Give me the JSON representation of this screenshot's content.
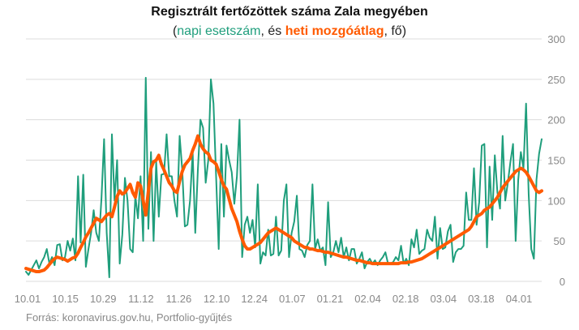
{
  "header": {
    "title": "Regisztrált fertőzöttek száma Zala megyében",
    "subtitle_open": "(",
    "subtitle_daily": "napi esetszám",
    "subtitle_mid": ", és ",
    "subtitle_weekly": "heti mozgóátlag",
    "subtitle_close": ", fő)"
  },
  "source": "Forrás: koronavirus.gov.hu, Portfolio-gyűjtés",
  "colors": {
    "daily": "#1f9e7c",
    "weekly": "#ff5a00",
    "grid": "#dcdcdc",
    "tick": "#888888"
  },
  "chart_data": {
    "type": "line",
    "title": "Regisztrált fertőzöttek száma Zala megyében",
    "subtitle": "(napi esetszám, és heti mozgóátlag, fő)",
    "xlabel": "",
    "ylabel": "",
    "ylim": [
      0,
      300
    ],
    "yticks": [
      0,
      50,
      100,
      150,
      200,
      250,
      300
    ],
    "grid": true,
    "x_start": "2020-10-01",
    "x_end": "2021-04-10",
    "xtick_labels": [
      "10.01",
      "10.15",
      "10.29",
      "11.12",
      "11.26",
      "12.10",
      "12.24",
      "01.07",
      "01.21",
      "02.04",
      "02.18",
      "03.04",
      "03.18",
      "04.01"
    ],
    "series": [
      {
        "name": "napi esetszám",
        "style": "thin",
        "values": [
          12,
          8,
          14,
          20,
          26,
          16,
          24,
          30,
          40,
          22,
          30,
          20,
          45,
          46,
          26,
          30,
          50,
          38,
          53,
          26,
          130,
          48,
          132,
          18,
          40,
          60,
          88,
          60,
          50,
          103,
          176,
          60,
          5,
          182,
          100,
          150,
          22,
          58,
          128,
          100,
          40,
          36,
          106,
          78,
          130,
          50,
          252,
          65,
          160,
          50,
          148,
          80,
          132,
          133,
          182,
          130,
          130,
          100,
          80,
          180,
          138,
          68,
          70,
          100,
          160,
          60,
          138,
          200,
          190,
          122,
          150,
          250,
          220,
          130,
          40,
          170,
          80,
          168,
          150,
          135,
          96,
          130,
          200,
          30,
          70,
          80,
          60,
          76,
          42,
          120,
          22,
          36,
          32,
          64,
          32,
          34,
          80,
          32,
          38,
          100,
          120,
          30,
          60,
          74,
          106,
          40,
          38,
          30,
          45,
          50,
          120,
          40,
          52,
          38,
          42,
          20,
          98,
          30,
          36,
          50,
          36,
          54,
          30,
          42,
          26,
          40,
          40,
          22,
          28,
          36,
          16,
          24,
          28,
          22,
          26,
          20,
          26,
          30,
          36,
          22,
          22,
          24,
          30,
          26,
          44,
          22,
          28,
          20,
          52,
          42,
          64,
          34,
          38,
          40,
          64,
          54,
          50,
          80,
          28,
          66,
          40,
          42,
          62,
          70,
          24,
          36,
          40,
          40,
          44,
          110,
          76,
          76,
          140,
          70,
          98,
          168,
          170,
          42,
          142,
          76,
          156,
          110,
          90,
          180,
          100,
          122,
          148,
          170,
          50,
          126,
          160,
          140,
          220,
          108,
          40,
          28,
          126,
          158,
          176
        ]
      },
      {
        "name": "heti mozgóátlag",
        "style": "thick",
        "values": [
          16,
          15,
          14,
          13,
          12,
          12,
          13,
          14,
          17,
          21,
          25,
          28,
          30,
          29,
          28,
          27,
          25,
          27,
          29,
          30,
          35,
          42,
          48,
          55,
          60,
          66,
          72,
          78,
          76,
          74,
          78,
          82,
          84,
          80,
          92,
          105,
          112,
          108,
          110,
          115,
          120,
          110,
          104,
          122,
          118,
          100,
          82,
          112,
          140,
          148,
          150,
          156,
          145,
          138,
          130,
          122,
          118,
          112,
          110,
          124,
          136,
          144,
          148,
          152,
          162,
          170,
          180,
          170,
          164,
          160,
          158,
          150,
          148,
          145,
          136,
          126,
          118,
          114,
          102,
          90,
          82,
          74,
          62,
          52,
          44,
          40,
          40,
          42,
          44,
          46,
          48,
          52,
          56,
          60,
          62,
          64,
          66,
          64,
          62,
          60,
          58,
          56,
          54,
          50,
          48,
          46,
          44,
          42,
          42,
          40,
          40,
          39,
          38,
          38,
          37,
          36,
          36,
          35,
          34,
          33,
          32,
          31,
          30,
          30,
          29,
          28,
          27,
          26,
          26,
          25,
          24,
          23,
          23,
          22,
          22,
          22,
          22,
          22,
          22,
          22,
          22,
          22,
          22,
          22,
          23,
          23,
          23,
          24,
          24,
          25,
          26,
          27,
          28,
          30,
          32,
          34,
          36,
          38,
          40,
          42,
          44,
          46,
          48,
          50,
          52,
          54,
          56,
          58,
          60,
          62,
          64,
          68,
          74,
          80,
          82,
          84,
          88,
          90,
          92,
          96,
          100,
          104,
          110,
          116,
          120,
          124,
          128,
          132,
          136,
          138,
          140,
          138,
          135,
          130,
          124,
          118,
          112,
          110,
          112
        ]
      }
    ]
  }
}
